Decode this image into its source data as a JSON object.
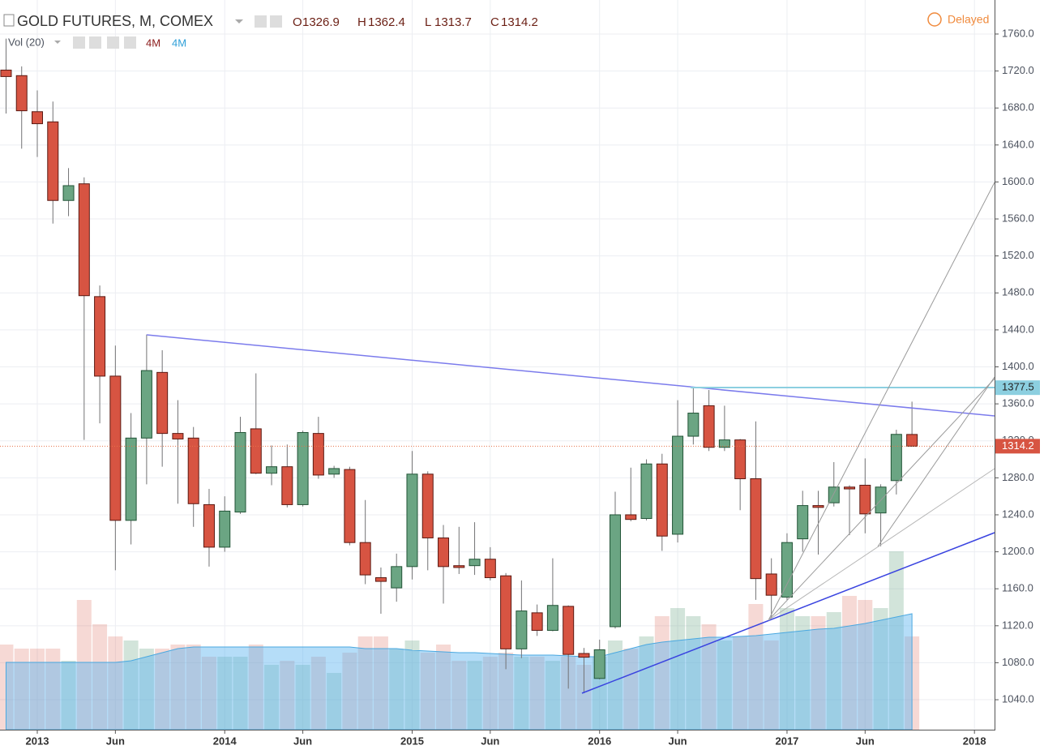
{
  "chart_data": {
    "type": "candlestick",
    "title": "GOLD FUTURES, M, COMEX",
    "ohlc_labels": [
      "O",
      "H",
      "L",
      "C"
    ],
    "status": "Delayed",
    "indicator": {
      "name": "Vol (20)",
      "value_labels": [
        "4M",
        "4M"
      ]
    },
    "categories": [
      null,
      null,
      "2013",
      null,
      null,
      null,
      null,
      "Jun",
      null,
      null,
      null,
      null,
      null,
      null,
      "2014",
      null,
      null,
      null,
      null,
      "Jun",
      null,
      null,
      null,
      null,
      null,
      null,
      "2015",
      null,
      null,
      null,
      null,
      "Jun",
      null,
      null,
      null,
      null,
      null,
      null,
      "2016",
      null,
      null,
      null,
      null,
      "Jun",
      null,
      null,
      null,
      null,
      null,
      null,
      "2017",
      null,
      null,
      null,
      null,
      "Jun",
      null,
      null,
      null,
      null,
      null,
      null,
      "2018"
    ],
    "open": [
      1721,
      1715,
      1676,
      1665,
      1580,
      1598,
      1476,
      1390,
      1234,
      1323,
      1394,
      1328,
      1323,
      1251,
      1205,
      1243,
      1333,
      1285,
      1292,
      1251,
      1328,
      1284,
      1289,
      1210,
      1172,
      1161,
      1184,
      1284,
      1215,
      1185,
      1185,
      1192,
      1174,
      1095,
      1134,
      1115,
      1141,
      1090,
      1063,
      1119,
      1240,
      1236,
      1295,
      1219,
      1325,
      1358,
      1313,
      1321,
      1279,
      1176,
      1151,
      1214,
      1250,
      1253,
      1270,
      1272,
      1242,
      1277,
      1326.9,
      null,
      null,
      null,
      null
    ],
    "high": [
      1755,
      1725,
      1699,
      1687,
      1615,
      1605,
      1488,
      1423,
      1350,
      1435,
      1418,
      1364,
      1335,
      1268,
      1260,
      1346,
      1393,
      1315,
      1316,
      1331,
      1346,
      1293,
      1292,
      1256,
      1183,
      1198,
      1309,
      1287,
      1229,
      1227,
      1232,
      1205,
      1177,
      1169,
      1143,
      1193,
      1142,
      1096,
      1105,
      1265,
      1291,
      1300,
      1306,
      1364,
      1378,
      1375,
      1358,
      1322,
      1341,
      1193,
      1220,
      1266,
      1266,
      1297,
      1272,
      1301,
      1273,
      1332,
      1362.4,
      null,
      null,
      null,
      null
    ],
    "low": [
      1674,
      1636,
      1627,
      1555,
      1563,
      1321,
      1339,
      1180,
      1208,
      1273,
      1292,
      1252,
      1227,
      1184,
      1200,
      1241,
      1284,
      1272,
      1248,
      1249,
      1279,
      1280,
      1207,
      1165,
      1133,
      1146,
      1170,
      1180,
      1144,
      1176,
      1175,
      1169,
      1073,
      1085,
      1109,
      1114,
      1052,
      1047,
      1062,
      1117,
      1233,
      1234,
      1201,
      1210,
      1316,
      1309,
      1309,
      1245,
      1148,
      1128,
      1148,
      1200,
      1197,
      1249,
      1218,
      1220,
      1206,
      1262,
      1313.7,
      null,
      null,
      null,
      null
    ],
    "close": [
      1714,
      1677,
      1663,
      1580,
      1596,
      1477,
      1390,
      1234,
      1323,
      1396,
      1328,
      1322,
      1252,
      1205,
      1244,
      1329,
      1285,
      1292,
      1251,
      1329,
      1283,
      1290,
      1210,
      1175,
      1168,
      1184,
      1284,
      1215,
      1184,
      1183,
      1192,
      1172,
      1095,
      1136,
      1115,
      1142,
      1089,
      1086,
      1094,
      1240,
      1235,
      1295,
      1217,
      1325,
      1350,
      1313,
      1321,
      1279,
      1171,
      1153,
      1210,
      1250,
      1248,
      1270,
      1268,
      1241,
      1270,
      1327,
      1314.2,
      null,
      null,
      null,
      null
    ],
    "volume": [
      2.1,
      2.0,
      2.0,
      2.0,
      1.7,
      3.2,
      2.6,
      2.3,
      2.2,
      2.0,
      2.0,
      2.1,
      2.1,
      1.8,
      1.8,
      1.8,
      2.1,
      1.6,
      1.7,
      1.6,
      1.8,
      1.4,
      1.9,
      2.3,
      2.3,
      2.0,
      2.2,
      1.9,
      2.1,
      1.7,
      1.7,
      1.8,
      1.9,
      1.8,
      1.8,
      1.7,
      1.8,
      1.6,
      1.8,
      2.2,
      2.0,
      2.3,
      2.8,
      3.0,
      2.8,
      2.6,
      2.2,
      2.3,
      3.1,
      2.2,
      3.0,
      2.8,
      2.8,
      2.9,
      3.3,
      3.2,
      3.0,
      4.4,
      2.3,
      null,
      null,
      null,
      null
    ],
    "volume_ma": [
      1.66,
      1.66,
      1.66,
      1.66,
      1.66,
      1.66,
      1.66,
      1.66,
      1.7,
      1.8,
      1.9,
      2.0,
      2.04,
      2.04,
      2.04,
      2.04,
      2.04,
      2.04,
      2.04,
      2.04,
      2.04,
      2.04,
      2.04,
      2.0,
      2.0,
      2.0,
      1.96,
      1.94,
      1.92,
      1.9,
      1.9,
      1.88,
      1.86,
      1.84,
      1.84,
      1.84,
      1.82,
      1.8,
      1.8,
      1.9,
      2.0,
      2.1,
      2.16,
      2.2,
      2.24,
      2.28,
      2.28,
      2.3,
      2.32,
      2.36,
      2.4,
      2.44,
      2.48,
      2.5,
      2.56,
      2.62,
      2.7,
      2.78,
      2.86,
      null,
      null,
      null,
      null
    ],
    "volume_lim": [
      0,
      18
    ],
    "up_color": "#6ba583",
    "down_color": "#d75442",
    "level": 1377.5,
    "ylim": [
      1007.6,
      1796.8
    ],
    "yticks": [
      {
        "value": 1040,
        "label": "1040.0"
      },
      {
        "value": 1080,
        "label": "1080.0"
      },
      {
        "value": 1120,
        "label": "1120.0"
      },
      {
        "value": 1160,
        "label": "1160.0"
      },
      {
        "value": 1200,
        "label": "1200.0"
      },
      {
        "value": 1240,
        "label": "1240.0"
      },
      {
        "value": 1280,
        "label": "1280.0"
      },
      {
        "value": 1320,
        "label": "1320.0"
      },
      {
        "value": 1360,
        "label": "1360.0"
      },
      {
        "value": 1400,
        "label": "1400.0"
      },
      {
        "value": 1440,
        "label": "1440.0"
      },
      {
        "value": 1480,
        "label": "1480.0"
      },
      {
        "value": 1520,
        "label": "1520.0"
      },
      {
        "value": 1560,
        "label": "1560.0"
      },
      {
        "value": 1600,
        "label": "1600.0"
      },
      {
        "value": 1640,
        "label": "1640.0"
      },
      {
        "value": 1680,
        "label": "1680.0"
      },
      {
        "value": 1720,
        "label": "1720.0"
      },
      {
        "value": 1760,
        "label": "1760.0"
      }
    ],
    "grid": true
  }
}
